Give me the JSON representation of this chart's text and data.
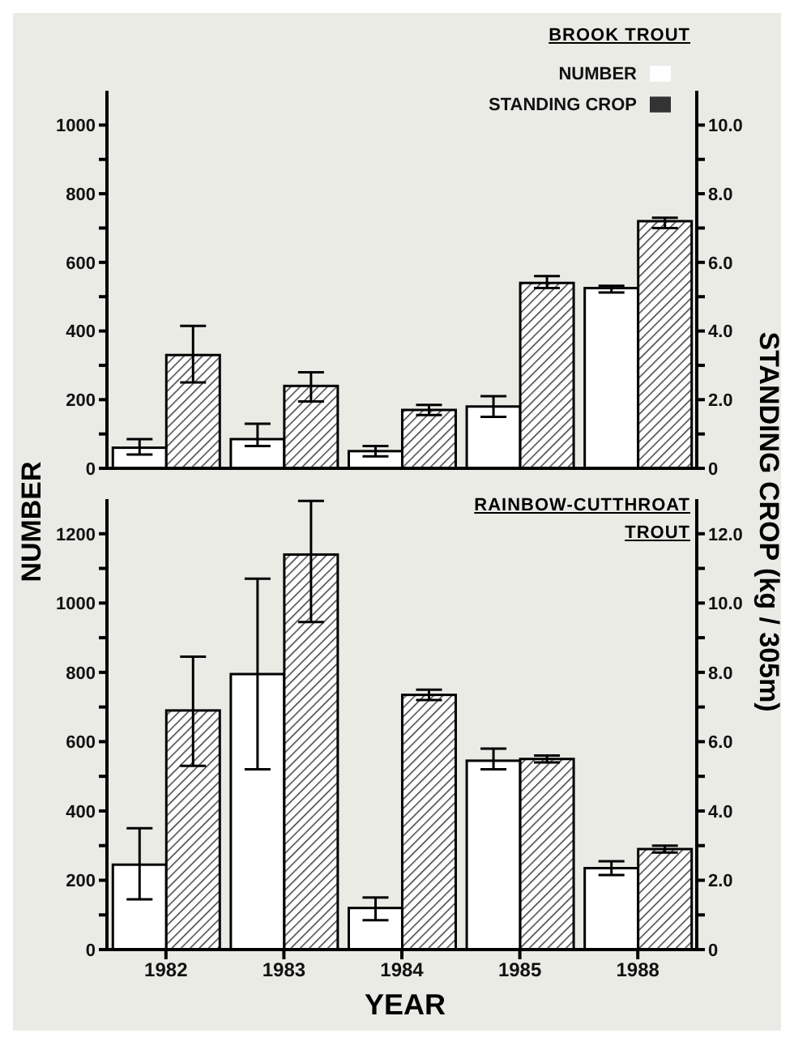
{
  "chart_data": [
    {
      "type": "bar",
      "title": "BROOK TROUT",
      "ylabel": "NUMBER",
      "y2label": "STANDING CROP (kg / 305m)",
      "categories": [
        "1982",
        "1983",
        "1984",
        "1985",
        "1988"
      ],
      "series": [
        {
          "name": "NUMBER",
          "color": "#ffffff",
          "values": [
            60,
            85,
            50,
            180,
            525
          ],
          "errors": [
            [
              40,
              85
            ],
            [
              65,
              130
            ],
            [
              35,
              65
            ],
            [
              150,
              210
            ],
            [
              512,
              532
            ]
          ]
        },
        {
          "name": "STANDING CROP",
          "color": "#333333",
          "axis": "y2",
          "values": [
            3.3,
            2.4,
            1.7,
            5.4,
            7.2
          ],
          "errors": [
            [
              2.5,
              4.15
            ],
            [
              1.95,
              2.8
            ],
            [
              1.55,
              1.85
            ],
            [
              5.25,
              5.6
            ],
            [
              7.0,
              7.3
            ]
          ]
        }
      ],
      "ylim": [
        0,
        1100
      ],
      "yticks": [
        0,
        {
          "value": 100,
          "label": null
        },
        200,
        {
          "value": 300,
          "label": null
        },
        400,
        {
          "value": 500,
          "label": null
        },
        600,
        {
          "value": 700,
          "label": null
        },
        800,
        {
          "value": 900,
          "label": null
        },
        1000
      ],
      "y2lim": [
        0,
        11
      ],
      "y2ticks": [
        0,
        {
          "value": 1,
          "label": null
        },
        {
          "value": 2,
          "label": "2.0"
        },
        {
          "value": 3,
          "label": null
        },
        {
          "value": 4,
          "label": "4.0"
        },
        {
          "value": 5,
          "label": null
        },
        {
          "value": 6,
          "label": "6.0"
        },
        {
          "value": 7,
          "label": null
        },
        {
          "value": 8,
          "label": "8.0"
        },
        {
          "value": 9,
          "label": null
        },
        {
          "value": 10,
          "label": "10.0"
        }
      ],
      "legend": "top right",
      "tick_labels": "y"
    },
    {
      "type": "bar",
      "title": "RAINBOW-CUTTHROAT TROUT",
      "xlabel": "YEAR",
      "categories": [
        "1982",
        "1983",
        "1984",
        "1985",
        "1988"
      ],
      "series": [
        {
          "color": "#ffffff",
          "values": [
            245,
            795,
            120,
            545,
            235
          ],
          "errors": [
            [
              145,
              350
            ],
            [
              520,
              1070
            ],
            [
              85,
              150
            ],
            [
              520,
              580
            ],
            [
              215,
              255
            ]
          ]
        },
        {
          "color": "#333333",
          "axis": "y2",
          "values": [
            6.9,
            11.4,
            7.35,
            5.5,
            2.9
          ],
          "errors": [
            [
              5.3,
              8.45
            ],
            [
              9.45,
              12.95
            ],
            [
              7.2,
              7.5
            ],
            [
              5.4,
              5.6
            ],
            [
              2.8,
              3.0
            ]
          ]
        }
      ],
      "ylim": [
        0,
        1300
      ],
      "yticks": [
        0,
        {
          "value": 100,
          "label": null
        },
        200,
        {
          "value": 300,
          "label": null
        },
        400,
        {
          "value": 500,
          "label": null
        },
        600,
        {
          "value": 700,
          "label": null
        },
        800,
        {
          "value": 900,
          "label": null
        },
        1000,
        {
          "value": 1100,
          "label": null
        },
        1200
      ],
      "y2lim": [
        0,
        13
      ],
      "y2ticks": [
        0,
        {
          "value": 1,
          "label": null
        },
        {
          "value": 2,
          "label": "2.0"
        },
        {
          "value": 3,
          "label": null
        },
        {
          "value": 4,
          "label": "4.0"
        },
        {
          "value": 5,
          "label": null
        },
        {
          "value": 6,
          "label": "6.0"
        },
        {
          "value": 7,
          "label": null
        },
        {
          "value": 8,
          "label": "8.0"
        },
        {
          "value": 9,
          "label": null
        },
        {
          "value": 10,
          "label": "10.0"
        },
        {
          "value": 11,
          "label": null
        },
        {
          "value": 12,
          "label": "12.0"
        }
      ],
      "legend": false
    }
  ]
}
